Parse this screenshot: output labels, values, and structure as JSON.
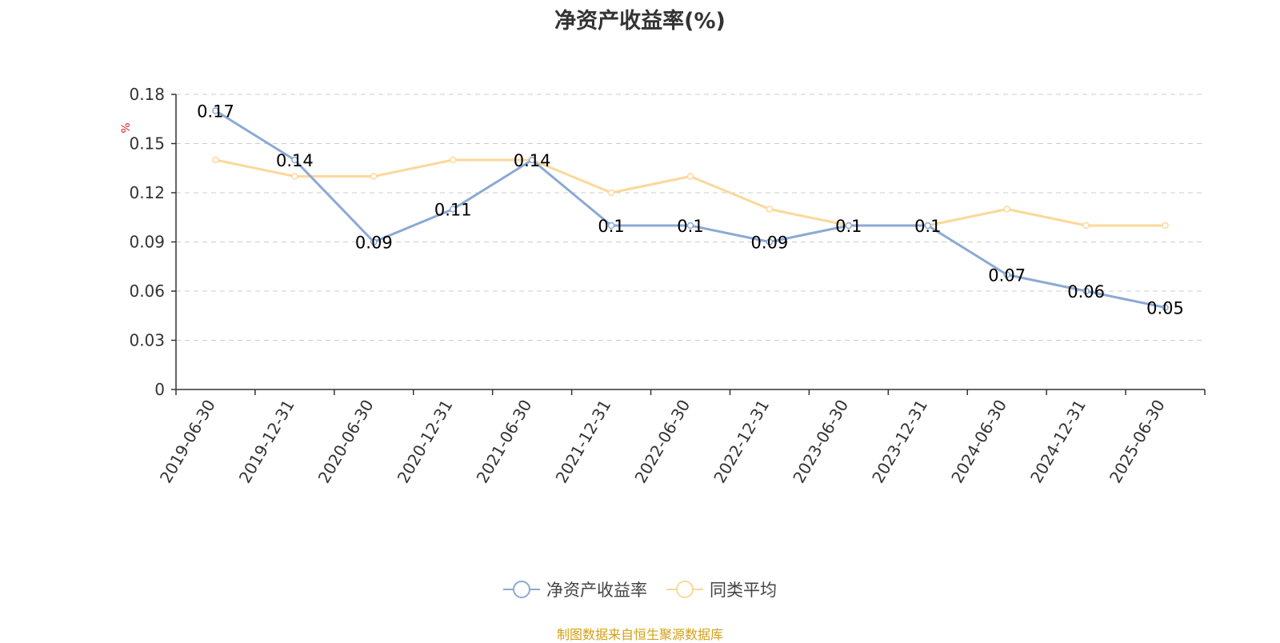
{
  "chart_data": {
    "type": "line",
    "title": "净资产收益率(%)",
    "ylabel": "%",
    "xlabel": "",
    "ylim": [
      0,
      0.18
    ],
    "yticks": [
      "0",
      "0.03",
      "0.06",
      "0.09",
      "0.12",
      "0.15",
      "0.18"
    ],
    "ytick_values": [
      0,
      0.03,
      0.06,
      0.09,
      0.12,
      0.15,
      0.18
    ],
    "grid": true,
    "legend_position": "bottom",
    "categories": [
      "2019-06-30",
      "2019-12-31",
      "2020-06-30",
      "2020-12-31",
      "2021-06-30",
      "2021-12-31",
      "2022-06-30",
      "2022-12-31",
      "2023-06-30",
      "2023-12-31",
      "2024-06-30",
      "2024-12-31",
      "2025-06-30"
    ],
    "series": [
      {
        "name": "净资产收益率",
        "color": "#8ba9d4",
        "values": [
          0.17,
          0.14,
          0.09,
          0.11,
          0.14,
          0.1,
          0.1,
          0.09,
          0.1,
          0.1,
          0.07,
          0.06,
          0.05
        ],
        "labels": [
          "0.17",
          "0.14",
          "0.09",
          "0.11",
          "0.14",
          "0.1",
          "0.1",
          "0.09",
          "0.1",
          "0.1",
          "0.07",
          "0.06",
          "0.05"
        ]
      },
      {
        "name": "同类平均",
        "color": "#fcd89a",
        "values": [
          0.14,
          0.13,
          0.13,
          0.14,
          0.14,
          0.12,
          0.13,
          0.11,
          0.1,
          0.1,
          0.11,
          0.1,
          0.1
        ]
      }
    ]
  },
  "source": "制图数据来自恒生聚源数据库"
}
